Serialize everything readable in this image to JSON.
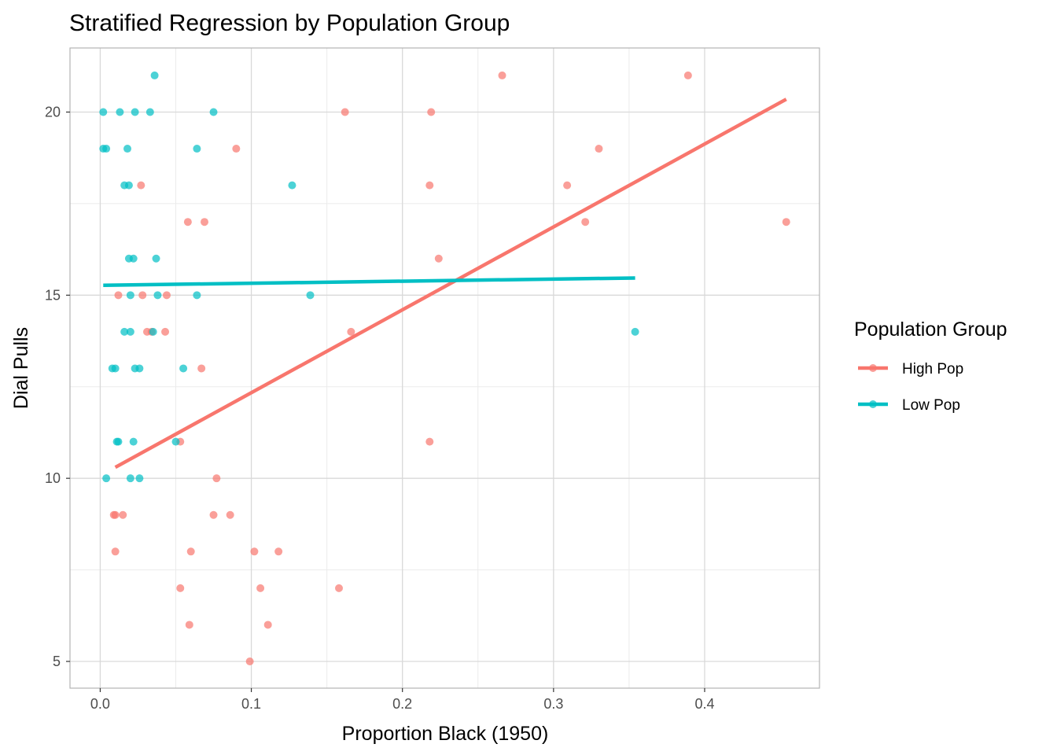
{
  "chart_data": {
    "type": "scatter",
    "title": "Stratified Regression by Population Group",
    "xlabel": "Proportion Black (1950)",
    "ylabel": "Dial Pulls",
    "xlim": [
      -0.02,
      0.476
    ],
    "ylim": [
      4.27,
      21.75
    ],
    "x_ticks": [
      0.0,
      0.1,
      0.2,
      0.3,
      0.4
    ],
    "x_tick_labels": [
      "0.0",
      "0.1",
      "0.2",
      "0.3",
      "0.4"
    ],
    "y_ticks": [
      5,
      10,
      15,
      20
    ],
    "y_tick_labels": [
      "5",
      "10",
      "15",
      "20"
    ],
    "grid": true,
    "legend": {
      "title": "Population Group",
      "position": "right"
    },
    "series": [
      {
        "name": "High Pop",
        "color": "#F8766D",
        "points": [
          [
            0.266,
            21
          ],
          [
            0.389,
            21
          ],
          [
            0.162,
            20
          ],
          [
            0.219,
            20
          ],
          [
            0.09,
            19
          ],
          [
            0.33,
            19
          ],
          [
            0.027,
            18
          ],
          [
            0.218,
            18
          ],
          [
            0.309,
            18
          ],
          [
            0.058,
            17
          ],
          [
            0.069,
            17
          ],
          [
            0.321,
            17
          ],
          [
            0.454,
            17
          ],
          [
            0.224,
            16
          ],
          [
            0.012,
            15
          ],
          [
            0.028,
            15
          ],
          [
            0.044,
            15
          ],
          [
            0.031,
            14
          ],
          [
            0.034,
            14
          ],
          [
            0.043,
            14
          ],
          [
            0.166,
            14
          ],
          [
            0.067,
            13
          ],
          [
            0.053,
            11
          ],
          [
            0.218,
            11
          ],
          [
            0.077,
            10
          ],
          [
            0.009,
            9
          ],
          [
            0.01,
            9
          ],
          [
            0.015,
            9
          ],
          [
            0.075,
            9
          ],
          [
            0.086,
            9
          ],
          [
            0.01,
            8
          ],
          [
            0.06,
            8
          ],
          [
            0.102,
            8
          ],
          [
            0.118,
            8
          ],
          [
            0.053,
            7
          ],
          [
            0.106,
            7
          ],
          [
            0.158,
            7
          ],
          [
            0.059,
            6
          ],
          [
            0.111,
            6
          ],
          [
            0.099,
            5
          ]
        ],
        "fit": [
          [
            0.01,
            10.3
          ],
          [
            0.454,
            20.35
          ]
        ]
      },
      {
        "name": "Low Pop",
        "color": "#00BFC4",
        "points": [
          [
            0.036,
            21
          ],
          [
            0.002,
            20
          ],
          [
            0.013,
            20
          ],
          [
            0.023,
            20
          ],
          [
            0.033,
            20
          ],
          [
            0.075,
            20
          ],
          [
            0.002,
            19
          ],
          [
            0.004,
            19
          ],
          [
            0.018,
            19
          ],
          [
            0.064,
            19
          ],
          [
            0.016,
            18
          ],
          [
            0.019,
            18
          ],
          [
            0.127,
            18
          ],
          [
            0.019,
            16
          ],
          [
            0.022,
            16
          ],
          [
            0.037,
            16
          ],
          [
            0.02,
            15
          ],
          [
            0.038,
            15
          ],
          [
            0.064,
            15
          ],
          [
            0.139,
            15
          ],
          [
            0.016,
            14
          ],
          [
            0.02,
            14
          ],
          [
            0.035,
            14
          ],
          [
            0.354,
            14
          ],
          [
            0.008,
            13
          ],
          [
            0.01,
            13
          ],
          [
            0.023,
            13
          ],
          [
            0.026,
            13
          ],
          [
            0.055,
            13
          ],
          [
            0.011,
            11
          ],
          [
            0.012,
            11
          ],
          [
            0.022,
            11
          ],
          [
            0.05,
            11
          ],
          [
            0.004,
            10
          ],
          [
            0.02,
            10
          ],
          [
            0.026,
            10
          ]
        ],
        "fit": [
          [
            0.002,
            15.27
          ],
          [
            0.354,
            15.47
          ]
        ]
      }
    ]
  }
}
